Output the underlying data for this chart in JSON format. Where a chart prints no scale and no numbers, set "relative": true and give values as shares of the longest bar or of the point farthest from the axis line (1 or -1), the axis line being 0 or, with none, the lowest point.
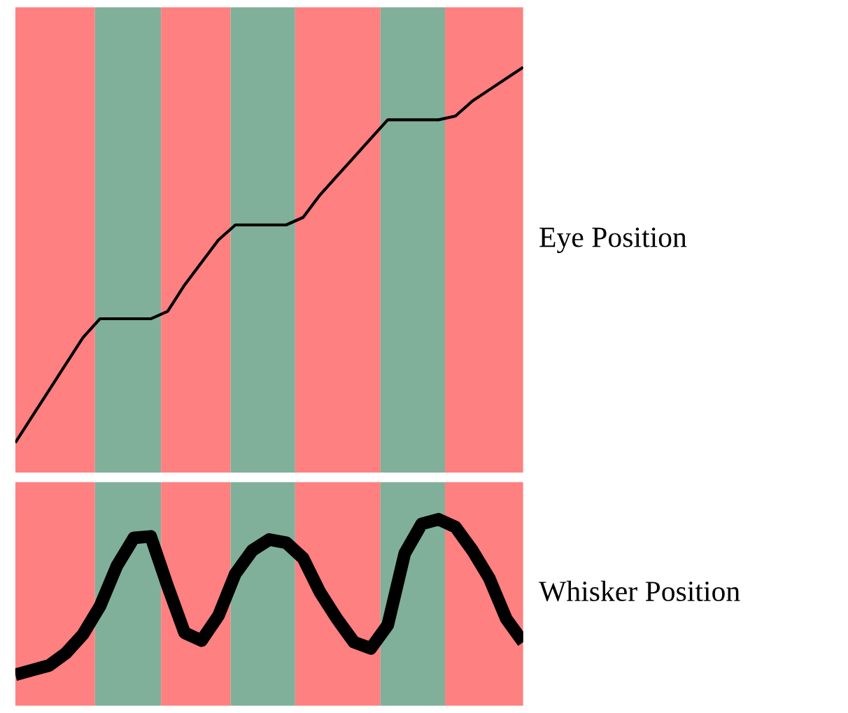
{
  "chart_data": [
    {
      "type": "line",
      "relative": true,
      "ylabel": "Eye Position",
      "tick_labels": false,
      "categories": [
        null,
        null,
        null,
        null,
        null,
        null,
        null,
        null,
        null,
        null,
        null,
        null,
        null,
        null,
        null,
        null,
        null,
        null,
        null,
        null,
        null,
        null,
        null,
        null,
        null,
        null,
        null,
        null,
        null,
        null,
        null
      ],
      "series": [
        {
          "color": "#000000",
          "values": [
            0,
            0.07,
            0.14,
            0.21,
            0.28,
            0.33,
            0.33,
            0.33,
            0.33,
            0.35,
            0.42,
            0.48,
            0.54,
            0.58,
            0.58,
            0.58,
            0.58,
            0.6,
            0.66,
            0.71,
            0.76,
            0.81,
            0.86,
            0.86,
            0.86,
            0.86,
            0.87,
            0.91,
            0.94,
            0.97,
            1
          ]
        }
      ]
    },
    {
      "type": "line",
      "relative": true,
      "ylabel": "Whisker Position",
      "tick_labels": false,
      "categories": [
        null,
        null,
        null,
        null,
        null,
        null,
        null,
        null,
        null,
        null,
        null,
        null,
        null,
        null,
        null,
        null,
        null,
        null,
        null,
        null,
        null,
        null,
        null,
        null,
        null,
        null,
        null,
        null,
        null,
        null,
        null
      ],
      "series": [
        {
          "color": "#000000",
          "values": [
            0,
            0.03,
            0.06,
            0.14,
            0.26,
            0.44,
            0.7,
            0.88,
            0.89,
            0.57,
            0.27,
            0.22,
            0.38,
            0.65,
            0.8,
            0.87,
            0.85,
            0.75,
            0.53,
            0.36,
            0.21,
            0.17,
            0.32,
            0.78,
            0.97,
            1,
            0.95,
            0.8,
            0.62,
            0.36,
            0.21
          ]
        }
      ]
    }
  ]
}
